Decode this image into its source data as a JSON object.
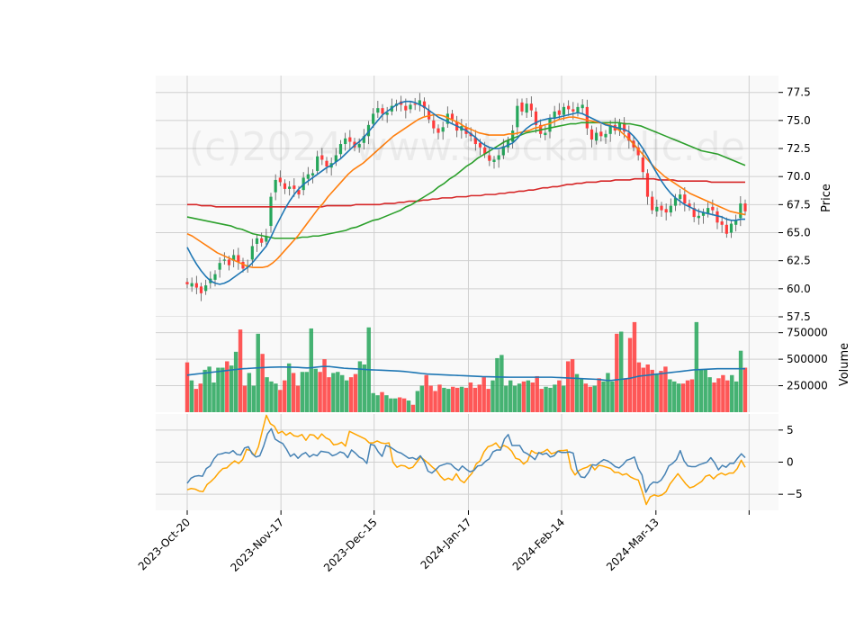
{
  "chart_data": {
    "type": "candlestick",
    "watermark": "(c)2024 www.stockaholic.de",
    "colors": {
      "up": "#26a65b",
      "down": "#ff3b3b",
      "sma_short": "#1f77b4",
      "sma_mid": "#ff7f0e",
      "sma_long": "#2ca02c",
      "sma_longest": "#d62728",
      "volume_ma": "#1f77b4",
      "osc_line_a": "#4682b4",
      "osc_line_b": "#ffa500",
      "panel_bg": "#f9f9f9",
      "grid": "#d0d0d0"
    },
    "x_ticks": [
      "2023-Oct-20",
      "2023-Nov-17",
      "2023-Dec-15",
      "2024-Jan-17",
      "2024-Feb-14",
      "2024-Mar-13"
    ],
    "price_panel": {
      "ylabel": "Price",
      "ylim": [
        57.5,
        79.0
      ],
      "yticks": [
        57.5,
        60.0,
        62.5,
        65.0,
        67.5,
        70.0,
        72.5,
        75.0,
        77.5
      ],
      "yticklabels": [
        "57.5",
        "60.0",
        "62.5",
        "65.0",
        "67.5",
        "70.0",
        "72.5",
        "75.0",
        "77.5"
      ],
      "grid": true,
      "close": [
        60.4,
        60.5,
        60.1,
        59.6,
        60.3,
        60.9,
        61.3,
        62.3,
        62.6,
        62.1,
        63.0,
        62.4,
        61.8,
        62.1,
        63.8,
        64.5,
        64.1,
        64.7,
        68.2,
        69.7,
        69.5,
        68.9,
        69.1,
        68.9,
        68.4,
        69.9,
        70.2,
        70.3,
        71.8,
        71.5,
        70.9,
        71.2,
        71.9,
        72.9,
        73.4,
        73.1,
        72.6,
        72.9,
        73.6,
        74.6,
        75.6,
        76.1,
        75.6,
        75.7,
        76.3,
        76.5,
        76.4,
        75.9,
        76.4,
        76.4,
        76.8,
        76.1,
        75.1,
        74.3,
        73.9,
        74.4,
        75.6,
        75.1,
        74.1,
        74.5,
        73.8,
        73.6,
        72.9,
        72.6,
        72.0,
        71.4,
        71.5,
        71.9,
        72.7,
        73.2,
        74.1,
        76.3,
        75.8,
        76.5,
        75.9,
        74.6,
        73.8,
        73.9,
        75.2,
        75.8,
        75.5,
        76.2,
        76.0,
        75.8,
        76.2,
        76.4,
        74.3,
        73.3,
        73.9,
        73.6,
        73.8,
        74.5,
        74.1,
        74.8,
        74.0,
        73.2,
        72.6,
        71.9,
        70.4,
        68.2,
        67.0,
        67.3,
        67.0,
        66.8,
        67.4,
        68.1,
        68.4,
        67.6,
        67.3,
        66.4,
        66.5,
        66.8,
        67.2,
        67.0,
        65.9,
        65.7,
        64.9,
        65.8,
        66.1,
        67.6,
        66.9
      ],
      "open_shift": [
        0.2,
        -0.3,
        0.4,
        0.6,
        -0.5,
        -0.4,
        -0.5,
        -0.6,
        -0.1,
        0.5,
        -0.5,
        0.6,
        0.6,
        -0.2,
        -1.2,
        -0.5,
        0.4,
        -0.5,
        -2.6,
        -1.1,
        0.4,
        0.5,
        -0.2,
        0.3,
        0.4,
        -1.1,
        -0.4,
        -0.2,
        -1.3,
        0.4,
        0.5,
        -0.4,
        -0.6,
        -0.9,
        -0.5,
        0.4,
        0.5,
        -0.3,
        -0.6,
        -1.0,
        -0.9,
        -0.4,
        0.5,
        -0.2,
        -0.5,
        -0.2,
        0.3,
        0.4,
        -0.4,
        0.1,
        -0.4,
        0.6,
        0.8,
        0.7,
        0.4,
        -0.4,
        -0.9,
        0.5,
        0.8,
        -0.4,
        0.6,
        0.3,
        0.6,
        0.4,
        0.6,
        0.5,
        -0.2,
        -0.4,
        -0.8,
        -0.6,
        -1.0,
        -1.9,
        0.8,
        -0.8,
        0.6,
        1.2,
        0.8,
        -0.2,
        -1.2,
        -0.6,
        0.4,
        -0.7,
        0.3,
        0.2,
        -0.5,
        -0.3,
        1.9,
        0.9,
        -0.7,
        0.4,
        -0.3,
        -0.7,
        0.5,
        -0.7,
        0.8,
        0.7,
        0.6,
        0.7,
        1.3,
        2.1,
        1.2,
        -0.4,
        0.4,
        0.3,
        -0.6,
        -0.7,
        -0.4,
        0.8,
        0.3,
        0.8,
        -0.2,
        -0.3,
        -0.5,
        0.3,
        1.0,
        0.3,
        0.8,
        -0.8,
        -0.4,
        -1.3,
        0.7
      ],
      "sma_short": [
        63.7,
        62.9,
        62.2,
        61.6,
        61.1,
        60.7,
        60.5,
        60.4,
        60.5,
        60.7,
        61.0,
        61.3,
        61.6,
        61.9,
        62.3,
        62.8,
        63.3,
        63.8,
        64.6,
        65.5,
        66.3,
        67.1,
        67.8,
        68.4,
        68.9,
        69.3,
        69.6,
        69.9,
        70.2,
        70.5,
        70.8,
        71.0,
        71.3,
        71.6,
        72.0,
        72.4,
        72.8,
        73.1,
        73.5,
        74.0,
        74.5,
        75.0,
        75.5,
        75.8,
        76.1,
        76.4,
        76.6,
        76.7,
        76.7,
        76.6,
        76.4,
        76.2,
        75.9,
        75.6,
        75.3,
        75.1,
        74.9,
        74.7,
        74.5,
        74.3,
        74.1,
        73.8,
        73.5,
        73.1,
        72.8,
        72.6,
        72.5,
        72.5,
        72.6,
        72.8,
        73.0,
        73.4,
        73.9,
        74.3,
        74.6,
        74.8,
        75.0,
        75.1,
        75.2,
        75.2,
        75.3,
        75.4,
        75.5,
        75.6,
        75.7,
        75.6,
        75.4,
        75.2,
        75.0,
        74.8,
        74.6,
        74.5,
        74.4,
        74.3,
        74.2,
        74.0,
        73.6,
        73.1,
        72.5,
        71.8,
        71.0,
        70.3,
        69.6,
        69.0,
        68.5,
        68.1,
        67.8,
        67.5,
        67.3,
        67.1,
        66.9,
        66.8,
        66.7,
        66.6,
        66.5,
        66.4,
        66.2,
        66.1,
        66.1,
        66.2,
        66.2
      ],
      "sma_mid": [
        64.9,
        64.7,
        64.4,
        64.1,
        63.8,
        63.5,
        63.2,
        63.0,
        62.8,
        62.6,
        62.4,
        62.2,
        62.0,
        61.9,
        61.9,
        61.9,
        62.0,
        62.3,
        62.7,
        63.2,
        63.7,
        64.2,
        64.7,
        65.3,
        65.9,
        66.5,
        67.1,
        67.6,
        68.2,
        68.7,
        69.2,
        69.7,
        70.2,
        70.6,
        70.9,
        71.2,
        71.6,
        72.0,
        72.4,
        72.8,
        73.2,
        73.6,
        73.9,
        74.2,
        74.5,
        74.8,
        75.1,
        75.3,
        75.4,
        75.5,
        75.5,
        75.4,
        75.2,
        75.0,
        74.8,
        74.5,
        74.3,
        74.1,
        73.9,
        73.8,
        73.7,
        73.7,
        73.7,
        73.7,
        73.8,
        73.8,
        73.9,
        74.0,
        74.1,
        74.3,
        74.4,
        74.6,
        74.7,
        74.9,
        75.1,
        75.2,
        75.3,
        75.3,
        75.2,
        75.1,
        75.0,
        74.9,
        74.8,
        74.7,
        74.6,
        74.4,
        74.1,
        73.7,
        73.3,
        72.8,
        72.3,
        71.8,
        71.3,
        70.8,
        70.4,
        70.0,
        69.7,
        69.4,
        69.1,
        68.8,
        68.5,
        68.3,
        68.1,
        67.9,
        67.7,
        67.5,
        67.3,
        67.1,
        66.9,
        66.8,
        66.7,
        66.6
      ],
      "sma_long": [
        66.4,
        66.3,
        66.2,
        66.1,
        66.0,
        65.9,
        65.8,
        65.7,
        65.6,
        65.4,
        65.3,
        65.1,
        64.9,
        64.8,
        64.7,
        64.6,
        64.5,
        64.5,
        64.5,
        64.5,
        64.5,
        64.6,
        64.6,
        64.7,
        64.7,
        64.8,
        64.9,
        65.0,
        65.1,
        65.2,
        65.4,
        65.5,
        65.7,
        65.9,
        66.1,
        66.2,
        66.4,
        66.6,
        66.8,
        67.0,
        67.3,
        67.5,
        67.8,
        68.1,
        68.4,
        68.7,
        69.1,
        69.4,
        69.8,
        70.1,
        70.5,
        70.9,
        71.2,
        71.6,
        71.9,
        72.2,
        72.5,
        72.8,
        73.1,
        73.3,
        73.5,
        73.7,
        73.9,
        74.0,
        74.1,
        74.2,
        74.3,
        74.4,
        74.5,
        74.6,
        74.7,
        74.7,
        74.8,
        74.8,
        74.8,
        74.8,
        74.8,
        74.8,
        74.8,
        74.8,
        74.7,
        74.7,
        74.6,
        74.5,
        74.3,
        74.1,
        73.9,
        73.7,
        73.5,
        73.3,
        73.1,
        72.9,
        72.7,
        72.5,
        72.3,
        72.2,
        72.1,
        72.0,
        71.8,
        71.6,
        71.4,
        71.2,
        71.0
      ],
      "sma_longest": [
        67.5,
        67.5,
        67.5,
        67.4,
        67.4,
        67.4,
        67.3,
        67.3,
        67.3,
        67.3,
        67.3,
        67.3,
        67.3,
        67.3,
        67.3,
        67.3,
        67.3,
        67.3,
        67.3,
        67.3,
        67.3,
        67.3,
        67.3,
        67.3,
        67.3,
        67.3,
        67.3,
        67.3,
        67.3,
        67.4,
        67.4,
        67.4,
        67.4,
        67.4,
        67.4,
        67.5,
        67.5,
        67.5,
        67.5,
        67.5,
        67.5,
        67.6,
        67.6,
        67.6,
        67.7,
        67.7,
        67.8,
        67.8,
        67.8,
        67.9,
        67.9,
        68.0,
        68.0,
        68.1,
        68.1,
        68.1,
        68.2,
        68.2,
        68.2,
        68.3,
        68.3,
        68.3,
        68.4,
        68.4,
        68.4,
        68.5,
        68.5,
        68.6,
        68.6,
        68.7,
        68.7,
        68.8,
        68.8,
        68.9,
        69.0,
        69.0,
        69.1,
        69.1,
        69.2,
        69.3,
        69.3,
        69.4,
        69.4,
        69.5,
        69.5,
        69.5,
        69.6,
        69.6,
        69.6,
        69.7,
        69.7,
        69.7,
        69.7,
        69.8,
        69.8,
        69.8,
        69.8,
        69.8,
        69.7,
        69.7,
        69.7,
        69.7,
        69.6,
        69.6,
        69.6,
        69.6,
        69.6,
        69.6,
        69.6,
        69.5,
        69.5,
        69.5,
        69.5,
        69.5,
        69.5,
        69.5,
        69.5
      ]
    },
    "volume_panel": {
      "ylabel": "Volume",
      "ylim": [
        0,
        900000
      ],
      "yticks": [
        250000,
        500000,
        750000
      ],
      "yticklabels": [
        "250000",
        "500000",
        "750000"
      ],
      "grid": true,
      "volume": [
        470000,
        300000,
        220000,
        270000,
        400000,
        430000,
        280000,
        420000,
        420000,
        480000,
        440000,
        570000,
        780000,
        250000,
        370000,
        250000,
        740000,
        550000,
        330000,
        290000,
        270000,
        210000,
        300000,
        460000,
        370000,
        250000,
        380000,
        380000,
        790000,
        410000,
        380000,
        500000,
        330000,
        370000,
        380000,
        350000,
        300000,
        330000,
        360000,
        480000,
        450000,
        800000,
        180000,
        160000,
        190000,
        160000,
        130000,
        130000,
        140000,
        130000,
        110000,
        70000,
        200000,
        250000,
        350000,
        250000,
        200000,
        260000,
        230000,
        220000,
        240000,
        230000,
        240000,
        230000,
        280000,
        230000,
        260000,
        330000,
        220000,
        300000,
        510000,
        540000,
        250000,
        300000,
        250000,
        270000,
        290000,
        300000,
        280000,
        340000,
        220000,
        240000,
        230000,
        260000,
        300000,
        250000,
        480000,
        500000,
        360000,
        310000,
        270000,
        240000,
        250000,
        320000,
        290000,
        370000,
        290000,
        740000,
        760000,
        320000,
        700000,
        850000,
        470000,
        420000,
        450000,
        400000,
        360000,
        390000,
        430000,
        310000,
        290000,
        270000,
        270000,
        300000,
        310000,
        850000,
        400000,
        400000,
        330000,
        280000,
        320000,
        350000,
        300000,
        350000,
        290000,
        580000,
        420000
      ],
      "volume_ma": [
        350000,
        355000,
        360000,
        365000,
        370000,
        375000,
        380000,
        385000,
        390000,
        395000,
        400000,
        405000,
        410000,
        412000,
        415000,
        418000,
        420000,
        422000,
        424000,
        425000,
        426000,
        426000,
        425000,
        424000,
        423000,
        420000,
        418000,
        420000,
        425000,
        430000,
        432000,
        430000,
        425000,
        420000,
        415000,
        412000,
        410000,
        408000,
        405000,
        402000,
        400000,
        398000,
        396000,
        394000,
        392000,
        390000,
        388000,
        385000,
        380000,
        375000,
        370000,
        365000,
        360000,
        358000,
        356000,
        354000,
        352000,
        350000,
        348000,
        346000,
        344000,
        342000,
        340000,
        338000,
        336000,
        335000,
        334000,
        333000,
        332000,
        331000,
        330000,
        330000,
        330000,
        330000,
        330000,
        330000,
        330000,
        330000,
        330000,
        330000,
        328000,
        326000,
        324000,
        322000,
        320000,
        318000,
        316000,
        314000,
        312000,
        310000,
        305000,
        300000,
        300000,
        305000,
        310000,
        315000,
        320000,
        330000,
        340000,
        345000,
        350000,
        355000,
        360000,
        365000,
        370000,
        375000,
        380000,
        385000,
        390000,
        395000,
        400000,
        402000,
        404000,
        406000,
        408000,
        410000,
        410000,
        410000,
        410000,
        410000,
        410000,
        410000
      ]
    },
    "oscillator_panel": {
      "ylim": [
        -7.5,
        7.5
      ],
      "yticks": [
        -5,
        0,
        5
      ],
      "yticklabels": [
        "−5",
        "0",
        "5"
      ],
      "grid": true,
      "line_a": [
        -3.3,
        -2.5,
        -2.2,
        -2.1,
        -2.2,
        -1.0,
        -0.6,
        0.5,
        1.2,
        1.3,
        1.5,
        1.4,
        1.8,
        1.2,
        1.1,
        2.2,
        2.4,
        1.3,
        0.8,
        1.0,
        2.5,
        4.4,
        5.2,
        3.6,
        3.2,
        2.9,
        2.0,
        0.9,
        1.3,
        0.6,
        1.2,
        1.5,
        0.8,
        1.2,
        1.0,
        1.7,
        1.6,
        1.5,
        1.0,
        1.2,
        1.6,
        1.4,
        0.7,
        1.9,
        1.4,
        0.8,
        0.5,
        -0.2,
        2.8,
        2.6,
        1.6,
        0.9,
        2.6,
        2.4,
        2.0,
        1.6,
        1.4,
        1.0,
        0.6,
        0.7,
        0.4,
        1.0,
        0.1,
        -1.4,
        -1.7,
        -1.2,
        -0.6,
        -0.4,
        -0.2,
        -0.3,
        -0.9,
        -1.3,
        -0.6,
        -1.1,
        -1.5,
        -1.3,
        -0.6,
        -0.5,
        0.1,
        0.5,
        1.6,
        1.9,
        1.9,
        3.6,
        4.3,
        2.6,
        2.6,
        2.6,
        1.6,
        1.3,
        0.9,
        0.4,
        1.5,
        1.2,
        1.4,
        0.8,
        1.0,
        1.7,
        1.5,
        1.5,
        1.6,
        1.4,
        -1.3,
        -2.3,
        -2.4,
        -1.6,
        -0.4,
        -0.5,
        0.0,
        0.4,
        0.2,
        -0.2,
        -0.7,
        -0.9,
        -0.4,
        0.3,
        0.5,
        0.8,
        -1.0,
        -2.0,
        -4.7,
        -3.6,
        -3.1,
        -3.2,
        -2.8,
        -1.9,
        -0.6,
        -0.2,
        0.4,
        1.8,
        0.2,
        -0.6,
        -0.7,
        -0.7,
        -0.4,
        -0.2,
        0.0,
        0.7,
        -0.1,
        -1.2,
        -0.5,
        -0.8,
        -0.2,
        -0.2,
        0.6,
        1.3,
        0.7
      ],
      "line_b": [
        -4.3,
        -4.1,
        -4.2,
        -4.5,
        -4.6,
        -3.5,
        -3.0,
        -2.4,
        -1.6,
        -1.0,
        -0.9,
        -0.3,
        0.2,
        -0.2,
        0.4,
        2.0,
        1.8,
        1.0,
        2.4,
        4.9,
        7.3,
        6.0,
        5.6,
        4.5,
        4.8,
        4.2,
        4.6,
        4.1,
        4.0,
        4.3,
        3.4,
        4.3,
        4.2,
        3.6,
        4.4,
        3.8,
        3.5,
        2.7,
        2.8,
        3.1,
        2.5,
        4.8,
        4.5,
        4.2,
        3.9,
        3.6,
        3.0,
        3.0,
        3.3,
        3.0,
        2.9,
        3.0,
        0.0,
        -0.8,
        -0.5,
        -0.6,
        -1.0,
        -0.8,
        0.0,
        0.8,
        0.3,
        -0.2,
        -0.8,
        -1.3,
        -2.2,
        -2.8,
        -2.5,
        -2.8,
        -1.8,
        -2.8,
        -3.2,
        -2.4,
        -1.7,
        -0.3,
        0.2,
        1.6,
        2.4,
        2.6,
        3.0,
        2.2,
        2.6,
        2.3,
        1.7,
        0.6,
        0.4,
        -0.3,
        0.2,
        1.8,
        1.4,
        1.4,
        1.6,
        2.0,
        1.3,
        1.5,
        1.8,
        1.8,
        1.9,
        -1.0,
        -2.0,
        -1.3,
        -1.0,
        -0.8,
        -0.4,
        -1.2,
        -0.5,
        -0.6,
        -0.8,
        -1.0,
        -1.6,
        -1.6,
        -2.0,
        -1.8,
        -2.3,
        -2.6,
        -2.8,
        -4.6,
        -6.6,
        -5.4,
        -5.1,
        -5.3,
        -5.1,
        -4.6,
        -3.4,
        -2.6,
        -1.8,
        -2.6,
        -3.4,
        -4.0,
        -3.8,
        -3.4,
        -3.0,
        -2.2,
        -2.0,
        -2.6,
        -2.0,
        -1.7,
        -2.0,
        -1.7,
        -1.7,
        -1.0,
        0.3,
        -0.8
      ]
    }
  }
}
